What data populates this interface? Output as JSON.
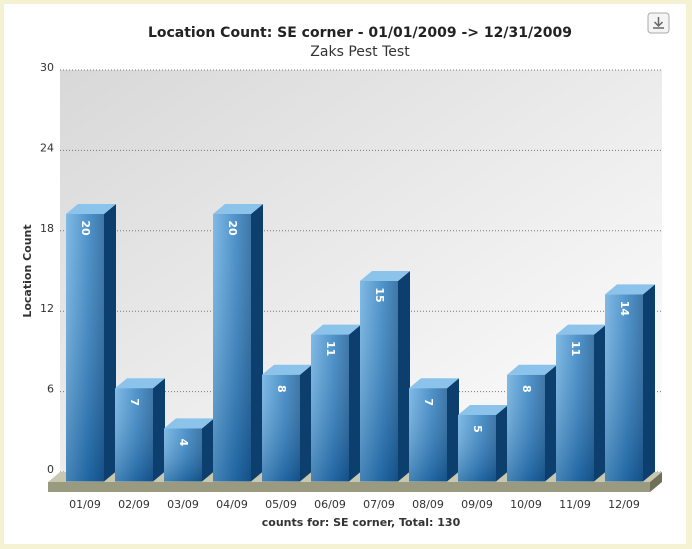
{
  "chart_data": {
    "type": "bar3d",
    "title": "Location Count: SE corner - 01/01/2009 -> 12/31/2009",
    "subtitle": "Zaks Pest Test",
    "y_label": "Location Count",
    "x_label": "counts for: SE corner, Total: 130",
    "categories": [
      "01/09",
      "02/09",
      "03/09",
      "04/09",
      "05/09",
      "06/09",
      "07/09",
      "08/09",
      "09/09",
      "10/09",
      "11/09",
      "12/09"
    ],
    "values": [
      20,
      7,
      4,
      20,
      8,
      11,
      15,
      7,
      5,
      8,
      11,
      14
    ],
    "color": "#2f7fc0",
    "ylim": [
      0,
      30
    ],
    "yticks": [
      0,
      6,
      12,
      18,
      24,
      30
    ],
    "grid": true
  }
}
